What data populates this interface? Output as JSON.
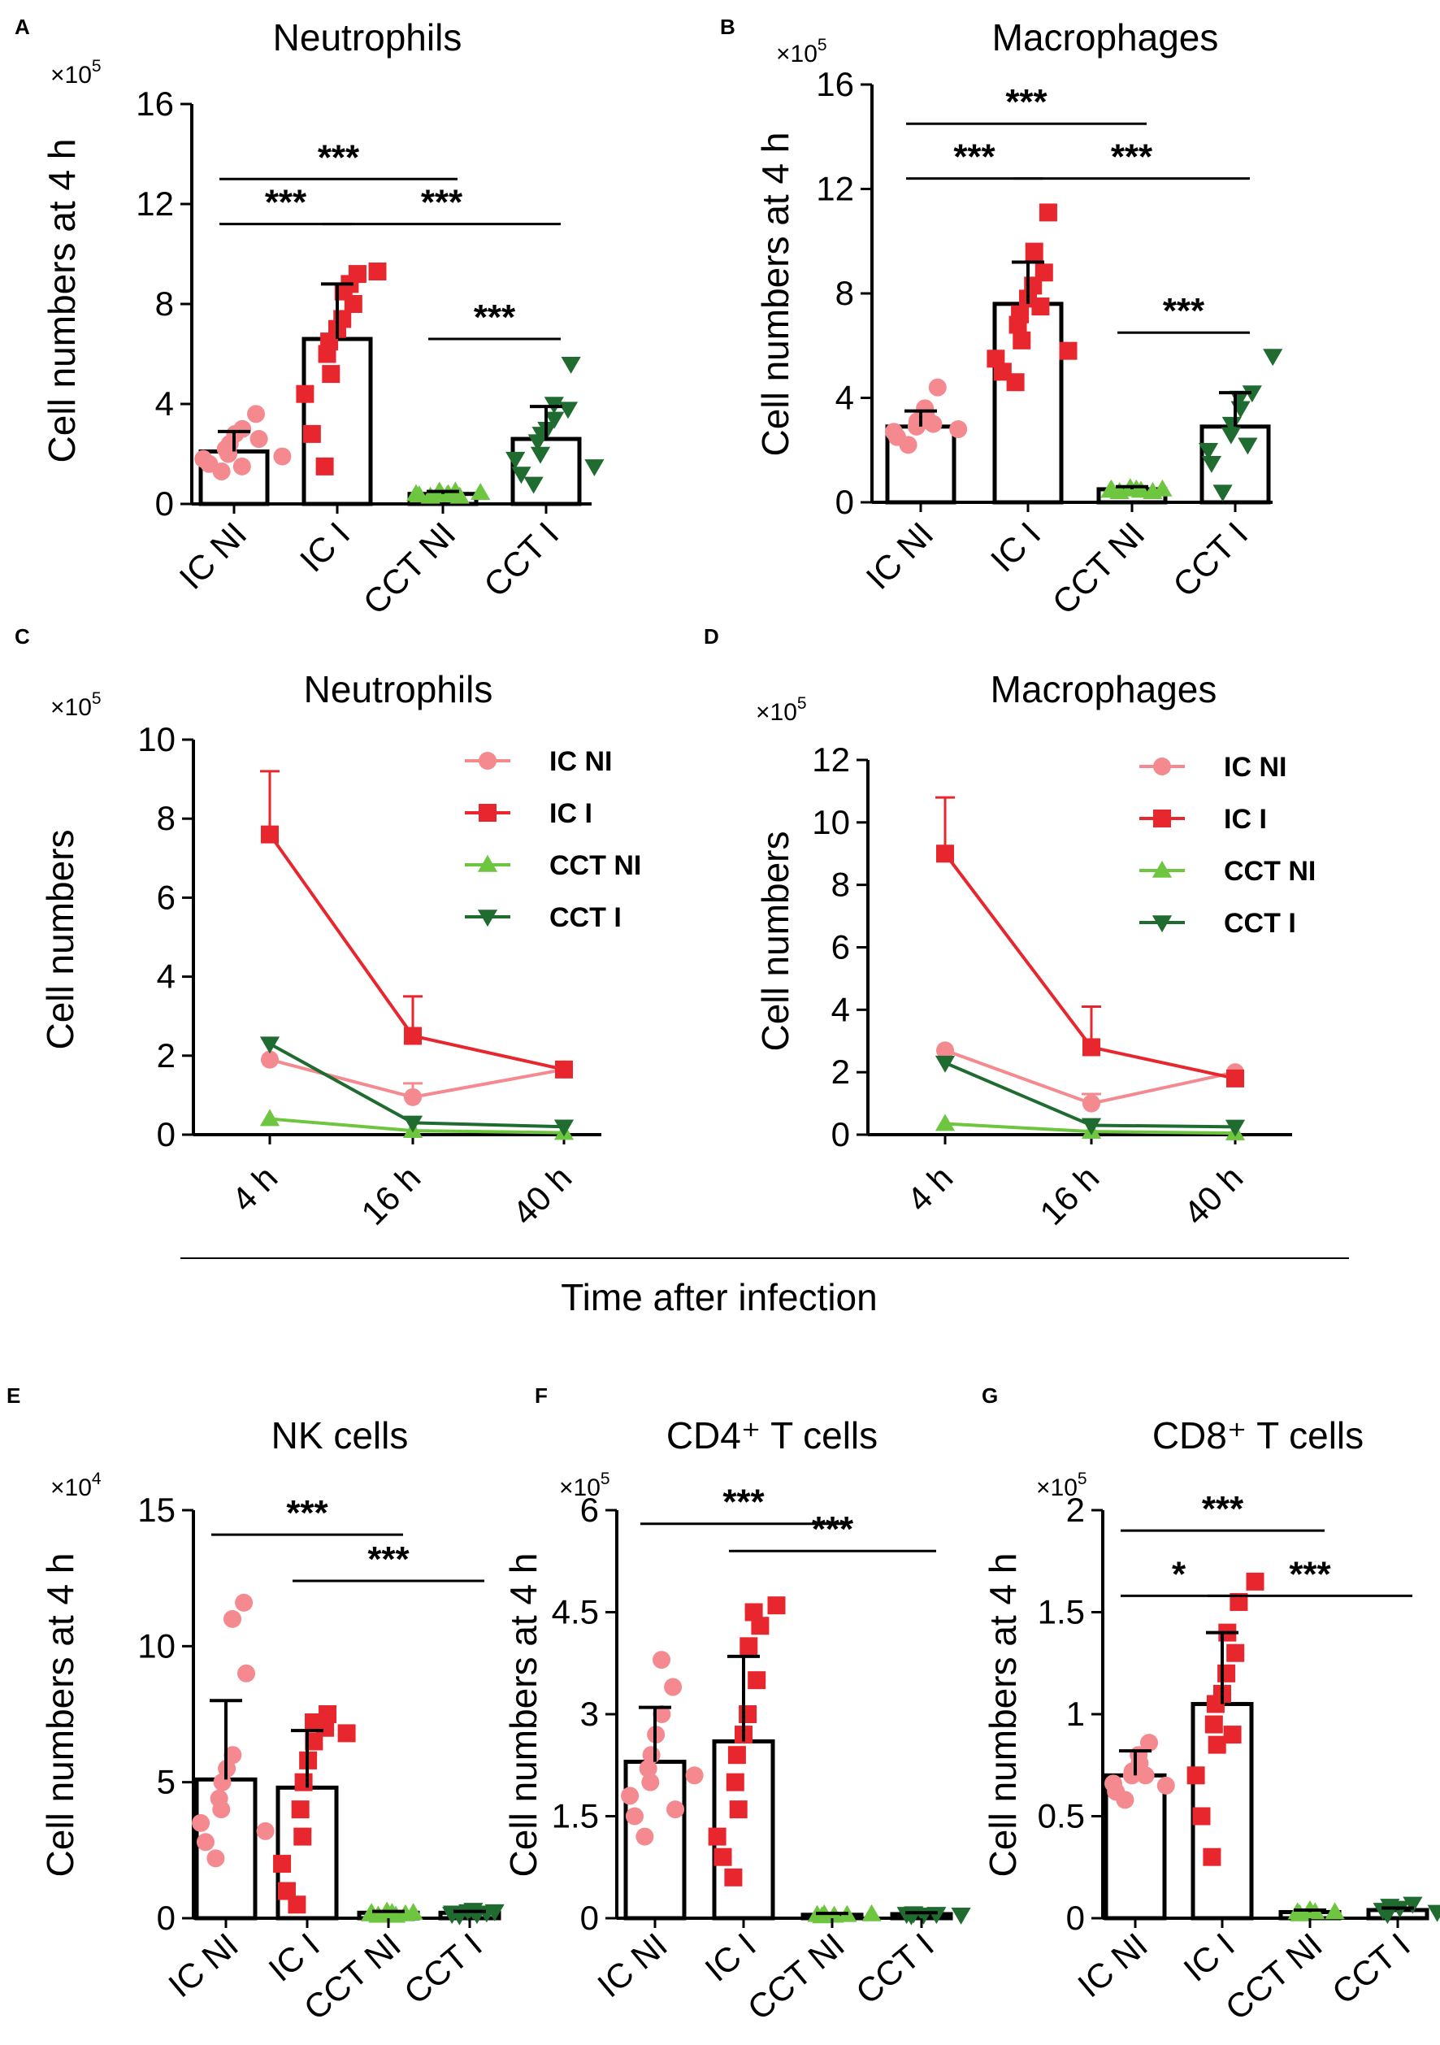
{
  "colors": {
    "IC NI": "#f4898f",
    "IC I": "#e8262e",
    "CCT NI": "#6ec540",
    "CCT I": "#1f6b30"
  },
  "global_xlabel": "Time after infection",
  "chart_data": [
    {
      "id": "A",
      "type": "bar",
      "title": "Neutrophils",
      "ylabel": "Cell numbers at 4 h",
      "multiplier": "×10",
      "exponent": "5",
      "ylim": [
        0,
        16
      ],
      "yticks": [
        "0",
        "4",
        "8",
        "12",
        "16"
      ],
      "ytick_values": [
        0,
        4,
        8,
        12,
        16
      ],
      "categories": [
        "IC NI",
        "IC I",
        "CCT NI",
        "CCT I"
      ],
      "values": [
        2.1,
        6.6,
        0.4,
        2.6
      ],
      "errors": [
        0.8,
        2.2,
        0.1,
        1.3
      ],
      "points": [
        [
          1.3,
          1.6,
          1.8,
          2.0,
          2.2,
          2.4,
          2.8,
          3.0,
          3.6,
          1.5,
          2.6,
          1.9
        ],
        [
          1.5,
          2.8,
          4.4,
          5.2,
          6.0,
          6.5,
          7.0,
          7.4,
          8.0,
          8.5,
          9.2,
          9.3,
          8.8
        ],
        [
          0.3,
          0.35,
          0.4,
          0.45,
          0.5,
          0.4,
          0.35,
          0.3,
          0.45,
          0.5
        ],
        [
          0.8,
          1.2,
          1.8,
          2.0,
          2.5,
          2.8,
          3.0,
          3.4,
          3.8,
          4.0,
          5.6,
          1.5
        ]
      ],
      "significance": [
        {
          "from": 0,
          "to": 2,
          "label": "***",
          "level": 13.0
        },
        {
          "from": 0,
          "to": 1,
          "label": "***",
          "level": 11.2
        },
        {
          "from": 1,
          "to": 3,
          "label": "***",
          "level": 11.2
        },
        {
          "from": 2,
          "to": 3,
          "label": "***",
          "level": 6.6
        }
      ]
    },
    {
      "id": "B",
      "type": "bar",
      "title": "Macrophages",
      "ylabel": "Cell numbers at 4 h",
      "multiplier": "×10",
      "exponent": "5",
      "ylim": [
        0,
        16
      ],
      "yticks": [
        "0",
        "4",
        "8",
        "12",
        "16"
      ],
      "ytick_values": [
        0,
        4,
        8,
        12,
        16
      ],
      "categories": [
        "IC NI",
        "IC I",
        "CCT NI",
        "CCT I"
      ],
      "values": [
        2.9,
        7.6,
        0.5,
        2.9
      ],
      "errors": [
        0.6,
        1.6,
        0.1,
        1.3
      ],
      "points": [
        [
          2.2,
          2.5,
          2.7,
          2.9,
          3.1,
          3.3,
          3.6,
          4.4,
          2.8,
          3.0
        ],
        [
          4.6,
          5.0,
          5.5,
          6.2,
          6.8,
          7.2,
          7.8,
          8.3,
          8.8,
          9.6,
          11.1,
          5.8,
          7.5
        ],
        [
          0.4,
          0.45,
          0.5,
          0.55,
          0.5,
          0.4,
          0.45,
          0.5
        ],
        [
          0.4,
          1.5,
          2.0,
          2.6,
          3.0,
          3.6,
          4.0,
          4.2,
          5.6,
          2.2
        ]
      ],
      "significance": [
        {
          "from": 0,
          "to": 2,
          "label": "***",
          "level": 14.5
        },
        {
          "from": 0,
          "to": 1,
          "label": "***",
          "level": 12.4
        },
        {
          "from": 1,
          "to": 3,
          "label": "***",
          "level": 12.4
        },
        {
          "from": 2,
          "to": 3,
          "label": "***",
          "level": 6.5
        }
      ]
    },
    {
      "id": "C",
      "type": "line",
      "title": "Neutrophils",
      "ylabel": "Cell numbers",
      "multiplier": "×10",
      "exponent": "5",
      "ylim": [
        0,
        10
      ],
      "yticks": [
        "0",
        "2",
        "4",
        "6",
        "8",
        "10"
      ],
      "ytick_values": [
        0,
        2,
        4,
        6,
        8,
        10
      ],
      "x": [
        "4 h",
        "16 h",
        "40 h"
      ],
      "series": [
        {
          "name": "IC NI",
          "values": [
            1.9,
            0.95,
            1.65
          ],
          "errors": [
            0,
            0.35,
            0
          ]
        },
        {
          "name": "IC I",
          "values": [
            7.6,
            2.5,
            1.65
          ],
          "errors": [
            1.6,
            1.0,
            0
          ]
        },
        {
          "name": "CCT NI",
          "values": [
            0.4,
            0.1,
            0.05
          ],
          "errors": [
            0,
            0,
            0
          ]
        },
        {
          "name": "CCT I",
          "values": [
            2.3,
            0.3,
            0.2
          ],
          "errors": [
            0,
            0,
            0
          ]
        }
      ],
      "legend": [
        "IC NI",
        "IC I",
        "CCT NI",
        "CCT  I"
      ]
    },
    {
      "id": "D",
      "type": "line",
      "title": "Macrophages",
      "ylabel": "Cell numbers",
      "multiplier": "×10",
      "exponent": "5",
      "ylim": [
        0,
        12
      ],
      "yticks": [
        "0",
        "2",
        "4",
        "6",
        "8",
        "10",
        "12"
      ],
      "ytick_values": [
        0,
        2,
        4,
        6,
        8,
        10,
        12
      ],
      "x": [
        "4 h",
        "16 h",
        "40 h"
      ],
      "series": [
        {
          "name": "IC NI",
          "values": [
            2.7,
            1.0,
            2.0
          ],
          "errors": [
            0,
            0.3,
            0
          ]
        },
        {
          "name": "IC I",
          "values": [
            9.0,
            2.8,
            1.8
          ],
          "errors": [
            1.8,
            1.3,
            0
          ]
        },
        {
          "name": "CCT NI",
          "values": [
            0.35,
            0.1,
            0.05
          ],
          "errors": [
            0,
            0,
            0
          ]
        },
        {
          "name": "CCT I",
          "values": [
            2.3,
            0.3,
            0.25
          ],
          "errors": [
            0,
            0,
            0
          ]
        }
      ],
      "legend": [
        "IC NI",
        "IC I",
        "CCT NI",
        "CCT  I"
      ]
    },
    {
      "id": "E",
      "type": "bar",
      "title": "NK cells",
      "ylabel": "Cell numbers at 4 h",
      "multiplier": "×10",
      "exponent": "4",
      "ylim": [
        0,
        15
      ],
      "yticks": [
        "0",
        "5",
        "10",
        "15"
      ],
      "ytick_values": [
        0,
        5,
        10,
        15
      ],
      "categories": [
        "IC NI",
        "IC I",
        "CCT  NI",
        "CCT  I"
      ],
      "values": [
        5.1,
        4.8,
        0.2,
        0.2
      ],
      "errors": [
        2.9,
        2.1,
        0.05,
        0.05
      ],
      "points": [
        [
          2.2,
          2.8,
          3.5,
          4.0,
          4.4,
          5.0,
          5.5,
          6.0,
          11.6,
          11.0,
          9.0,
          3.2
        ],
        [
          0.5,
          1.0,
          2.0,
          3.0,
          4.0,
          5.0,
          5.8,
          6.5,
          7.0,
          7.2,
          7.5,
          6.8
        ],
        [
          0.1,
          0.15,
          0.2,
          0.25,
          0.2,
          0.15,
          0.1,
          0.2
        ],
        [
          0.1,
          0.15,
          0.2,
          0.25,
          0.3,
          0.2,
          0.15,
          0.25
        ]
      ],
      "significance": [
        {
          "from": 0,
          "to": 2,
          "label": "***",
          "level": 14.1
        },
        {
          "from": 1,
          "to": 3,
          "label": "***",
          "level": 12.4
        }
      ]
    },
    {
      "id": "F",
      "type": "bar",
      "title": "CD4⁺ T cells",
      "ylabel": "Cell numbers at 4 h",
      "multiplier": "×10",
      "exponent": "5",
      "ylim": [
        0,
        6
      ],
      "yticks": [
        "0",
        "1.5",
        "3",
        "4.5",
        "6"
      ],
      "ytick_values": [
        0,
        1.5,
        3,
        4.5,
        6
      ],
      "categories": [
        "IC NI",
        "IC I",
        "CCT  NI",
        "CCT  I"
      ],
      "values": [
        2.3,
        2.6,
        0.05,
        0.06
      ],
      "errors": [
        0.8,
        1.25,
        0.02,
        0.02
      ],
      "points": [
        [
          1.2,
          1.5,
          1.8,
          2.0,
          2.2,
          2.4,
          2.7,
          3.0,
          3.4,
          3.8,
          1.6,
          2.1
        ],
        [
          0.6,
          0.9,
          1.2,
          1.6,
          2.0,
          2.4,
          2.7,
          3.0,
          3.5,
          4.0,
          4.3,
          4.6,
          4.5
        ],
        [
          0.03,
          0.05,
          0.06,
          0.04,
          0.05,
          0.06
        ],
        [
          0.04,
          0.06,
          0.07,
          0.05,
          0.06,
          0.05
        ]
      ],
      "significance": [
        {
          "from": 0,
          "to": 2,
          "label": "***",
          "level": 5.8
        },
        {
          "from": 1,
          "to": 3,
          "label": "***",
          "level": 5.4
        }
      ]
    },
    {
      "id": "G",
      "type": "bar",
      "title": "CD8⁺ T cells",
      "ylabel": "Cell numbers at 4 h",
      "multiplier": "×10",
      "exponent": "5",
      "ylim": [
        0,
        2
      ],
      "yticks": [
        "0",
        "0.5",
        "1",
        "1.5",
        "2"
      ],
      "ytick_values": [
        0,
        0.5,
        1,
        1.5,
        2
      ],
      "categories": [
        "IC NI",
        "IC I",
        "CCT  NI",
        "CCT  I"
      ],
      "values": [
        0.7,
        1.05,
        0.03,
        0.04
      ],
      "errors": [
        0.12,
        0.35,
        0.01,
        0.01
      ],
      "points": [
        [
          0.58,
          0.62,
          0.66,
          0.7,
          0.72,
          0.76,
          0.8,
          0.86,
          0.65,
          0.7
        ],
        [
          0.3,
          0.5,
          0.7,
          0.85,
          0.95,
          1.05,
          1.1,
          1.2,
          1.3,
          1.4,
          1.55,
          1.65,
          0.9
        ],
        [
          0.02,
          0.03,
          0.04,
          0.03,
          0.03
        ],
        [
          0.02,
          0.04,
          0.06,
          0.05,
          0.07,
          0.03
        ]
      ],
      "significance": [
        {
          "from": 0,
          "to": 2,
          "label": "***",
          "level": 1.9
        },
        {
          "from": 0,
          "to": 1,
          "label": "*",
          "level": 1.58
        },
        {
          "from": 1,
          "to": 3,
          "label": "***",
          "level": 1.58
        }
      ]
    }
  ]
}
